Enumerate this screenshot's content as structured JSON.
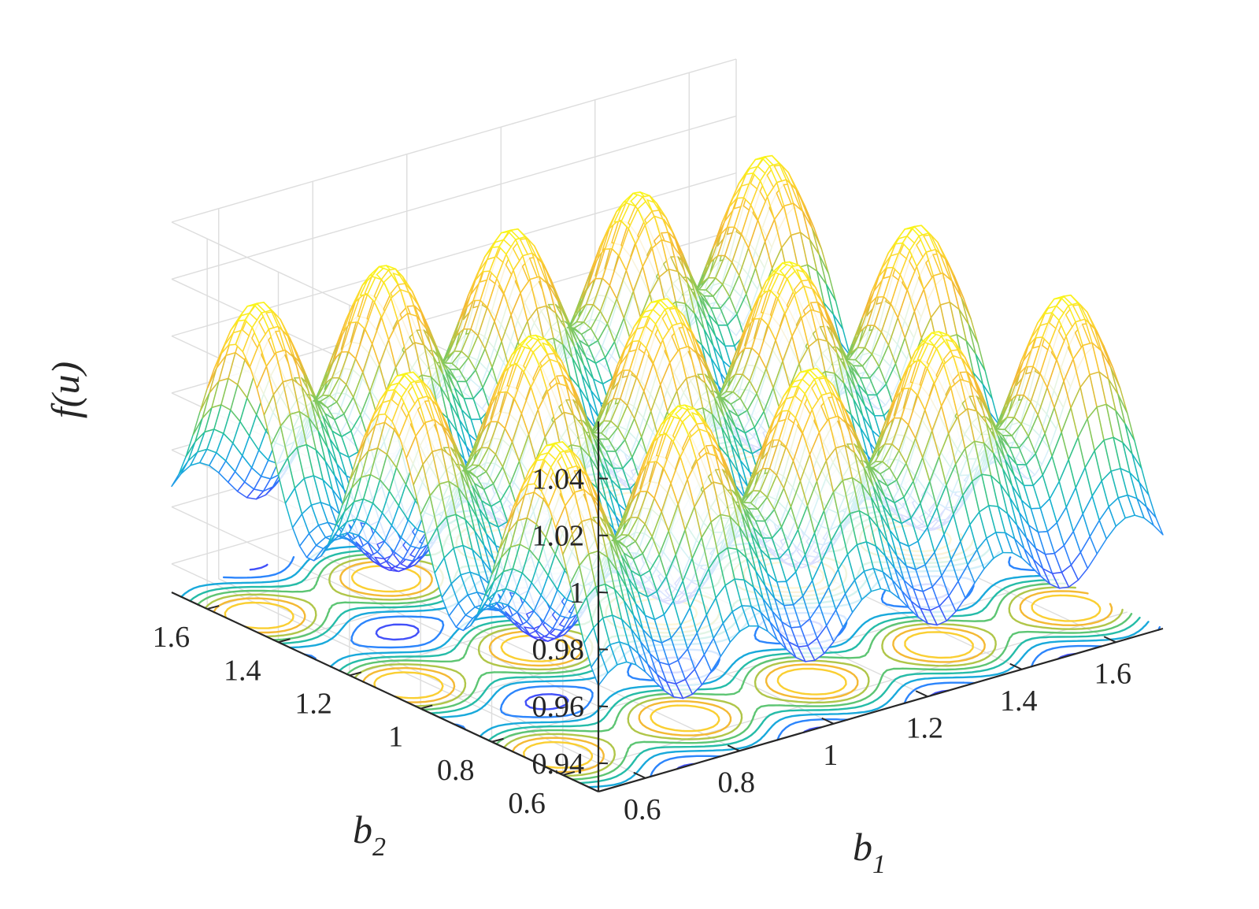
{
  "chart_data": {
    "type": "surface",
    "subtype": "mesh with contour projection on floor",
    "title": "",
    "xlabel": "b_1",
    "ylabel": "b_2",
    "zlabel": "f(u)",
    "axis_labels": {
      "x": {
        "base": "b",
        "sub": "1"
      },
      "y": {
        "base": "b",
        "sub": "2"
      },
      "z": {
        "text": "f(u)"
      }
    },
    "xlim": [
      0.5,
      1.7
    ],
    "ylim": [
      0.5,
      1.7
    ],
    "zlim": [
      0.93,
      1.06
    ],
    "x_ticks": [
      0.6,
      0.8,
      1.0,
      1.2,
      1.4,
      1.6
    ],
    "x_tick_labels": [
      "0.6",
      "0.8",
      "1",
      "1.2",
      "1.4",
      "1.6"
    ],
    "y_ticks": [
      0.6,
      0.8,
      1.0,
      1.2,
      1.4,
      1.6
    ],
    "y_tick_labels": [
      "0.6",
      "0.8",
      "1",
      "1.2",
      "1.4",
      "1.6"
    ],
    "z_ticks": [
      0.94,
      0.96,
      0.98,
      1.0,
      1.02,
      1.04
    ],
    "z_tick_labels": [
      "0.94",
      "0.96",
      "0.98",
      "1",
      "1.02",
      "1.04"
    ],
    "grid": true,
    "colormap": "parula",
    "colormap_stops": [
      "#3e26a8",
      "#4743f8",
      "#2c85fc",
      "#14b2d3",
      "#31c38c",
      "#9fc94e",
      "#f4b934",
      "#fcd431",
      "#f9fb15"
    ],
    "surface_samples": {
      "b1": [
        0.5,
        0.7,
        0.9,
        1.1,
        1.3,
        1.5,
        1.7
      ],
      "b2": [
        0.5,
        0.7,
        0.9,
        1.1,
        1.3,
        1.5,
        1.7
      ],
      "z_min": 0.94,
      "z_max": 1.04,
      "ridge_peak_value": 1.04,
      "valley_value": 0.94
    },
    "contour_levels": [
      0.935,
      0.945,
      0.955,
      0.965,
      0.975,
      0.985,
      0.995,
      1.005,
      1.015,
      1.025
    ]
  }
}
